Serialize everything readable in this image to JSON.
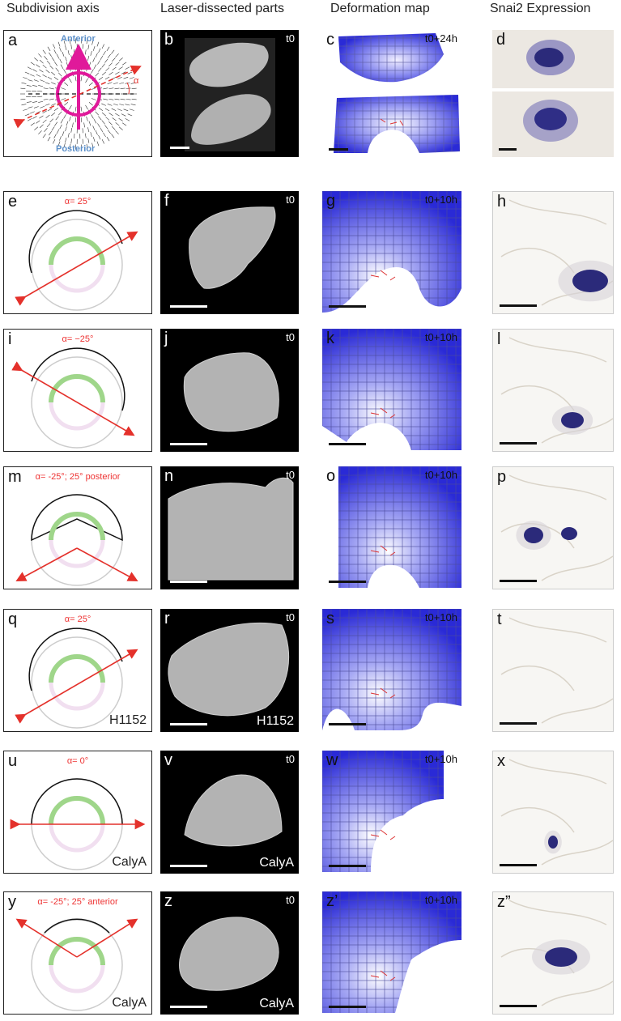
{
  "headers": {
    "col1": "Subdivision axis",
    "col2": "Laser-dissected parts",
    "col3": "Deformation map",
    "col4": "Snai2 Expression"
  },
  "row1": {
    "a": "a",
    "b": "b",
    "c": "c",
    "d": "d",
    "anterior": "Anterior",
    "posterior": "Posterior",
    "alpha_symbol": "α",
    "t0": "t0",
    "time_c": "t0+24h"
  },
  "rows": [
    {
      "l1": "e",
      "l2": "f",
      "l3": "g",
      "l4": "h",
      "alpha": "α= 25°",
      "t0": "t0",
      "time": "t0+10h",
      "drug": "",
      "drug_micro": ""
    },
    {
      "l1": "i",
      "l2": "j",
      "l3": "k",
      "l4": "l",
      "alpha": "α= −25°",
      "t0": "t0",
      "time": "t0+10h",
      "drug": "",
      "drug_micro": ""
    },
    {
      "l1": "m",
      "l2": "n",
      "l3": "o",
      "l4": "p",
      "alpha": "α= -25°; 25° posterior",
      "t0": "t0",
      "time": "t0+10h",
      "drug": "",
      "drug_micro": ""
    },
    {
      "l1": "q",
      "l2": "r",
      "l3": "s",
      "l4": "t",
      "alpha": "α= 25°",
      "t0": "t0",
      "time": "t0+10h",
      "drug": "H1152",
      "drug_micro": "H1152"
    },
    {
      "l1": "u",
      "l2": "v",
      "l3": "w",
      "l4": "x",
      "alpha": "α= 0°",
      "t0": "t0",
      "time": "t0+10h",
      "drug": "CalyA",
      "drug_micro": "CalyA"
    },
    {
      "l1": "y",
      "l2": "z",
      "l3": "z’",
      "l4": "z”",
      "alpha": "α= -25°; 25° anterior",
      "t0": "t0",
      "time": "t0+10h",
      "drug": "CalyA",
      "drug_micro": "CalyA"
    }
  ],
  "colors": {
    "arrow_red": "#e4312b",
    "magenta": "#e0199a",
    "green_ring": "#9fd68a",
    "pink_ring": "#f1dff0",
    "label_blue": "#5b8fc9",
    "deform_blue": "#2a2ad6",
    "stain_purple": "#2b2a7a"
  }
}
